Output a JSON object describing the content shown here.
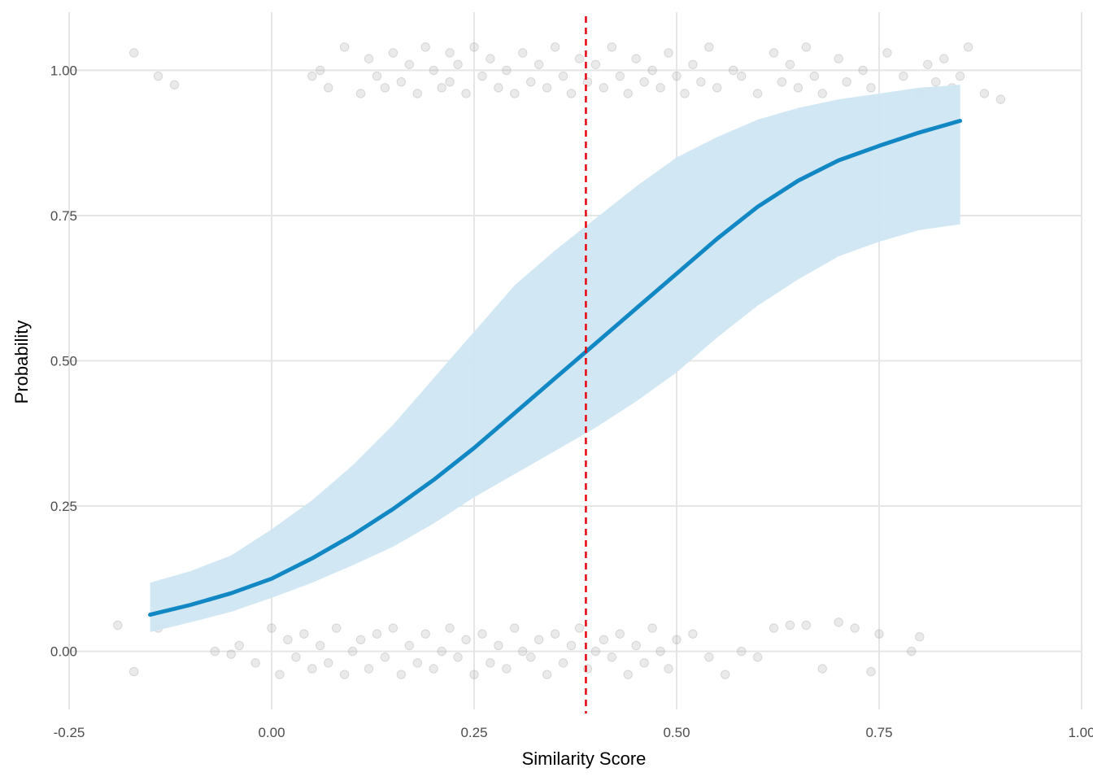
{
  "chart_data": {
    "type": "line",
    "title": "",
    "xlabel": "Similarity Score",
    "ylabel": "Probability",
    "xlim": [
      -0.25,
      1.0
    ],
    "ylim": [
      -0.1,
      1.1
    ],
    "x_ticks": [
      -0.25,
      0.0,
      0.25,
      0.5,
      0.75,
      1.0
    ],
    "x_tick_labels": [
      "-0.25",
      "0.00",
      "0.25",
      "0.50",
      "0.75",
      "1.00"
    ],
    "y_ticks": [
      0.0,
      0.25,
      0.5,
      0.75,
      1.0
    ],
    "y_tick_labels": [
      "0.00",
      "0.25",
      "0.50",
      "0.75",
      "1.00"
    ],
    "grid": true,
    "legend": "none",
    "colors": {
      "fit_line": "#1188c4",
      "ribbon": "#cfe6f3",
      "threshold": "#e8000b",
      "points": "#9e9e9e"
    },
    "threshold": {
      "x": 0.388,
      "style": "dashed"
    },
    "fitted_curve": {
      "x": [
        -0.15,
        -0.1,
        -0.05,
        0.0,
        0.05,
        0.1,
        0.15,
        0.2,
        0.25,
        0.3,
        0.35,
        0.4,
        0.45,
        0.5,
        0.55,
        0.6,
        0.65,
        0.7,
        0.75,
        0.8,
        0.85
      ],
      "y": [
        0.063,
        0.08,
        0.1,
        0.125,
        0.16,
        0.2,
        0.245,
        0.295,
        0.35,
        0.41,
        0.47,
        0.53,
        0.59,
        0.65,
        0.71,
        0.765,
        0.81,
        0.845,
        0.87,
        0.893,
        0.913
      ],
      "lower": [
        0.033,
        0.05,
        0.068,
        0.092,
        0.118,
        0.148,
        0.18,
        0.22,
        0.265,
        0.305,
        0.345,
        0.385,
        0.43,
        0.48,
        0.54,
        0.595,
        0.64,
        0.68,
        0.705,
        0.725,
        0.735
      ],
      "upper": [
        0.118,
        0.138,
        0.165,
        0.21,
        0.26,
        0.32,
        0.39,
        0.47,
        0.55,
        0.63,
        0.69,
        0.745,
        0.8,
        0.85,
        0.885,
        0.915,
        0.935,
        0.95,
        0.96,
        0.97,
        0.975
      ]
    },
    "jitter_points_y1": {
      "x": [
        -0.12,
        -0.17,
        -0.14,
        0.05,
        0.06,
        0.07,
        0.09,
        0.11,
        0.12,
        0.13,
        0.14,
        0.15,
        0.16,
        0.17,
        0.18,
        0.19,
        0.2,
        0.21,
        0.22,
        0.22,
        0.23,
        0.24,
        0.25,
        0.26,
        0.27,
        0.28,
        0.29,
        0.3,
        0.31,
        0.32,
        0.33,
        0.34,
        0.35,
        0.36,
        0.37,
        0.38,
        0.39,
        0.4,
        0.41,
        0.42,
        0.43,
        0.44,
        0.45,
        0.46,
        0.47,
        0.48,
        0.49,
        0.5,
        0.51,
        0.52,
        0.53,
        0.54,
        0.55,
        0.57,
        0.58,
        0.6,
        0.62,
        0.63,
        0.64,
        0.65,
        0.66,
        0.67,
        0.68,
        0.7,
        0.71,
        0.73,
        0.74,
        0.76,
        0.78,
        0.8,
        0.81,
        0.82,
        0.83,
        0.84,
        0.85,
        0.86,
        0.88,
        0.9
      ],
      "y": [
        0.975,
        1.03,
        0.99,
        0.99,
        1.0,
        0.97,
        1.04,
        0.96,
        1.02,
        0.99,
        0.97,
        1.03,
        0.98,
        1.01,
        0.96,
        1.04,
        1.0,
        0.97,
        1.03,
        0.98,
        1.01,
        0.96,
        1.04,
        0.99,
        1.02,
        0.97,
        1.0,
        0.96,
        1.03,
        0.98,
        1.01,
        0.97,
        1.04,
        0.99,
        0.96,
        1.02,
        0.98,
        1.01,
        0.97,
        1.04,
        0.99,
        0.96,
        1.02,
        0.98,
        1.0,
        0.97,
        1.03,
        0.99,
        0.96,
        1.01,
        0.98,
        1.04,
        0.97,
        1.0,
        0.99,
        0.96,
        1.03,
        0.98,
        1.01,
        0.97,
        1.04,
        0.99,
        0.96,
        1.02,
        0.98,
        1.0,
        0.97,
        1.03,
        0.99,
        0.96,
        1.01,
        0.98,
        1.02,
        0.97,
        0.99,
        1.04,
        0.96,
        0.95
      ]
    },
    "jitter_points_y0": {
      "x": [
        -0.19,
        -0.17,
        -0.14,
        -0.07,
        -0.05,
        -0.04,
        -0.02,
        0.0,
        0.01,
        0.02,
        0.03,
        0.04,
        0.05,
        0.06,
        0.07,
        0.08,
        0.09,
        0.1,
        0.11,
        0.12,
        0.13,
        0.14,
        0.15,
        0.16,
        0.17,
        0.18,
        0.19,
        0.2,
        0.21,
        0.22,
        0.23,
        0.24,
        0.25,
        0.26,
        0.27,
        0.28,
        0.29,
        0.3,
        0.31,
        0.32,
        0.33,
        0.34,
        0.35,
        0.36,
        0.37,
        0.38,
        0.39,
        0.4,
        0.41,
        0.42,
        0.43,
        0.44,
        0.45,
        0.46,
        0.47,
        0.48,
        0.49,
        0.5,
        0.52,
        0.54,
        0.56,
        0.58,
        0.6,
        0.62,
        0.64,
        0.66,
        0.68,
        0.7,
        0.72,
        0.74,
        0.75,
        0.79,
        0.8
      ],
      "y": [
        0.045,
        -0.035,
        0.04,
        0.0,
        -0.005,
        0.01,
        -0.02,
        0.04,
        -0.04,
        0.02,
        -0.01,
        0.03,
        -0.03,
        0.01,
        -0.02,
        0.04,
        -0.04,
        0.0,
        0.02,
        -0.03,
        0.03,
        -0.01,
        0.04,
        -0.04,
        0.01,
        -0.02,
        0.03,
        -0.03,
        0.0,
        0.04,
        -0.01,
        0.02,
        -0.04,
        0.03,
        -0.02,
        0.01,
        -0.03,
        0.04,
        0.0,
        -0.01,
        0.02,
        -0.04,
        0.03,
        -0.02,
        0.01,
        0.04,
        -0.03,
        0.0,
        0.02,
        -0.01,
        0.03,
        -0.04,
        0.01,
        -0.02,
        0.04,
        0.0,
        -0.03,
        0.02,
        0.03,
        -0.01,
        -0.04,
        0.0,
        -0.01,
        0.04,
        0.045,
        0.045,
        -0.03,
        0.05,
        0.04,
        -0.035,
        0.03,
        0.0,
        0.025
      ]
    }
  }
}
